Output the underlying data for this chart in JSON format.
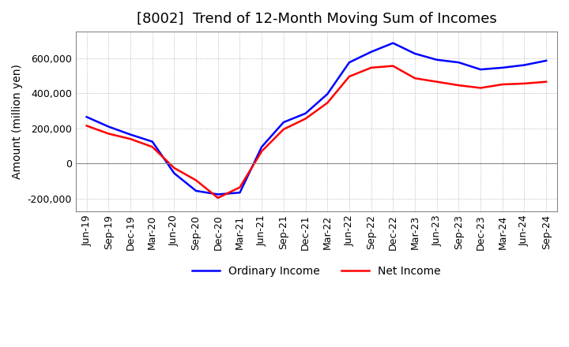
{
  "title": "[8002]  Trend of 12-Month Moving Sum of Incomes",
  "ylabel": "Amount (million yen)",
  "legend": [
    "Ordinary Income",
    "Net Income"
  ],
  "line_colors": [
    "blue",
    "red"
  ],
  "x_labels": [
    "Jun-19",
    "Sep-19",
    "Dec-19",
    "Mar-20",
    "Jun-20",
    "Sep-20",
    "Dec-20",
    "Mar-21",
    "Jun-21",
    "Sep-21",
    "Dec-21",
    "Mar-22",
    "Jun-22",
    "Sep-22",
    "Dec-22",
    "Mar-23",
    "Jun-23",
    "Sep-23",
    "Dec-23",
    "Mar-24",
    "Jun-24",
    "Sep-24"
  ],
  "ordinary_income": [
    265000,
    210000,
    165000,
    125000,
    -55000,
    -155000,
    -175000,
    -165000,
    95000,
    235000,
    285000,
    395000,
    575000,
    635000,
    685000,
    625000,
    590000,
    575000,
    535000,
    545000,
    560000,
    585000
  ],
  "net_income": [
    215000,
    170000,
    140000,
    95000,
    -25000,
    -95000,
    -195000,
    -135000,
    70000,
    195000,
    255000,
    345000,
    495000,
    545000,
    555000,
    485000,
    465000,
    445000,
    430000,
    450000,
    455000,
    465000
  ],
  "ylim": [
    -270000,
    750000
  ],
  "yticks": [
    -200000,
    0,
    200000,
    400000,
    600000
  ],
  "background_color": "#ffffff",
  "grid_color": "#aaaaaa",
  "title_fontsize": 13,
  "axis_fontsize": 10,
  "tick_fontsize": 9
}
